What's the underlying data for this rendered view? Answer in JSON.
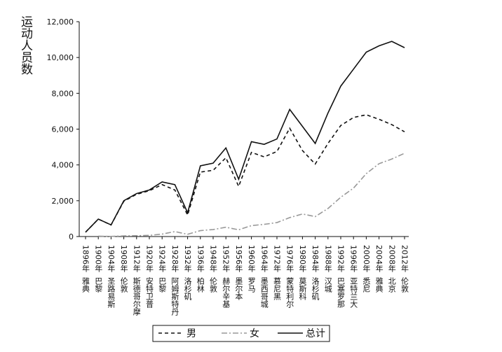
{
  "chart_data": {
    "type": "line",
    "y_label": "运动人员数",
    "categories": [
      "1896年",
      "1900年",
      "1904年",
      "1908年",
      "1912年",
      "1920年",
      "1924年",
      "1928年",
      "1932年",
      "1936年",
      "1948年",
      "1952年",
      "1956年",
      "1960年",
      "1964年",
      "1972年",
      "1976年",
      "1980年",
      "1984年",
      "1988年",
      "1992年",
      "1996年",
      "2000年",
      "2004年",
      "2008年",
      "2012年"
    ],
    "cities": [
      "雅典",
      "巴黎",
      "圣路易斯",
      "伦敦",
      "斯德哥尔摩",
      "安特卫普",
      "巴黎",
      "阿姆斯特丹",
      "洛杉矶",
      "柏林",
      "伦敦",
      "赫尔辛基",
      "墨尔本",
      "罗马",
      "墨西哥城",
      "慕尼黑",
      "蒙特利尔",
      "莫斯科",
      "洛杉矶",
      "汉城",
      "巴塞罗那",
      "亚特兰大",
      "悉尼",
      "雅典",
      "北京",
      "伦敦"
    ],
    "series": [
      {
        "name": "男",
        "color": "#111111",
        "dash": "5,4",
        "values": [
          241,
          975,
          645,
          1970,
          2360,
          2560,
          2900,
          2600,
          1200,
          3600,
          3700,
          4400,
          2800,
          4700,
          4450,
          4750,
          6050,
          4800,
          4050,
          5200,
          6200,
          6650,
          6800,
          6550,
          6250,
          5850
        ]
      },
      {
        "name": "女",
        "color": "#999999",
        "dash": "8,3,2,3",
        "values": [
          null,
          22,
          6,
          37,
          48,
          65,
          135,
          277,
          126,
          331,
          390,
          519,
          376,
          610,
          680,
          780,
          1058,
          1260,
          1115,
          1566,
          2194,
          2704,
          3512,
          4069,
          4329,
          4650
        ]
      },
      {
        "name": "总计",
        "color": "#111111",
        "dash": "",
        "values": [
          241,
          975,
          650,
          2000,
          2400,
          2600,
          3050,
          2900,
          1330,
          3950,
          4100,
          4950,
          3200,
          5300,
          5150,
          5450,
          7100,
          6150,
          5200,
          6900,
          8400,
          9350,
          10300,
          10650,
          10900,
          10550
        ]
      }
    ],
    "ylim": [
      0,
      12000
    ],
    "yticks": [
      0,
      {
        "value": 2000,
        "label": "2,000"
      },
      {
        "value": 4000,
        "label": "4,000"
      },
      {
        "value": 6000,
        "label": "6,000"
      },
      {
        "value": 8000,
        "label": "8,000"
      },
      {
        "value": 10000,
        "label": "10,000"
      },
      {
        "value": 12000,
        "label": "12,000"
      }
    ],
    "grid": false,
    "legend": "bottom"
  }
}
